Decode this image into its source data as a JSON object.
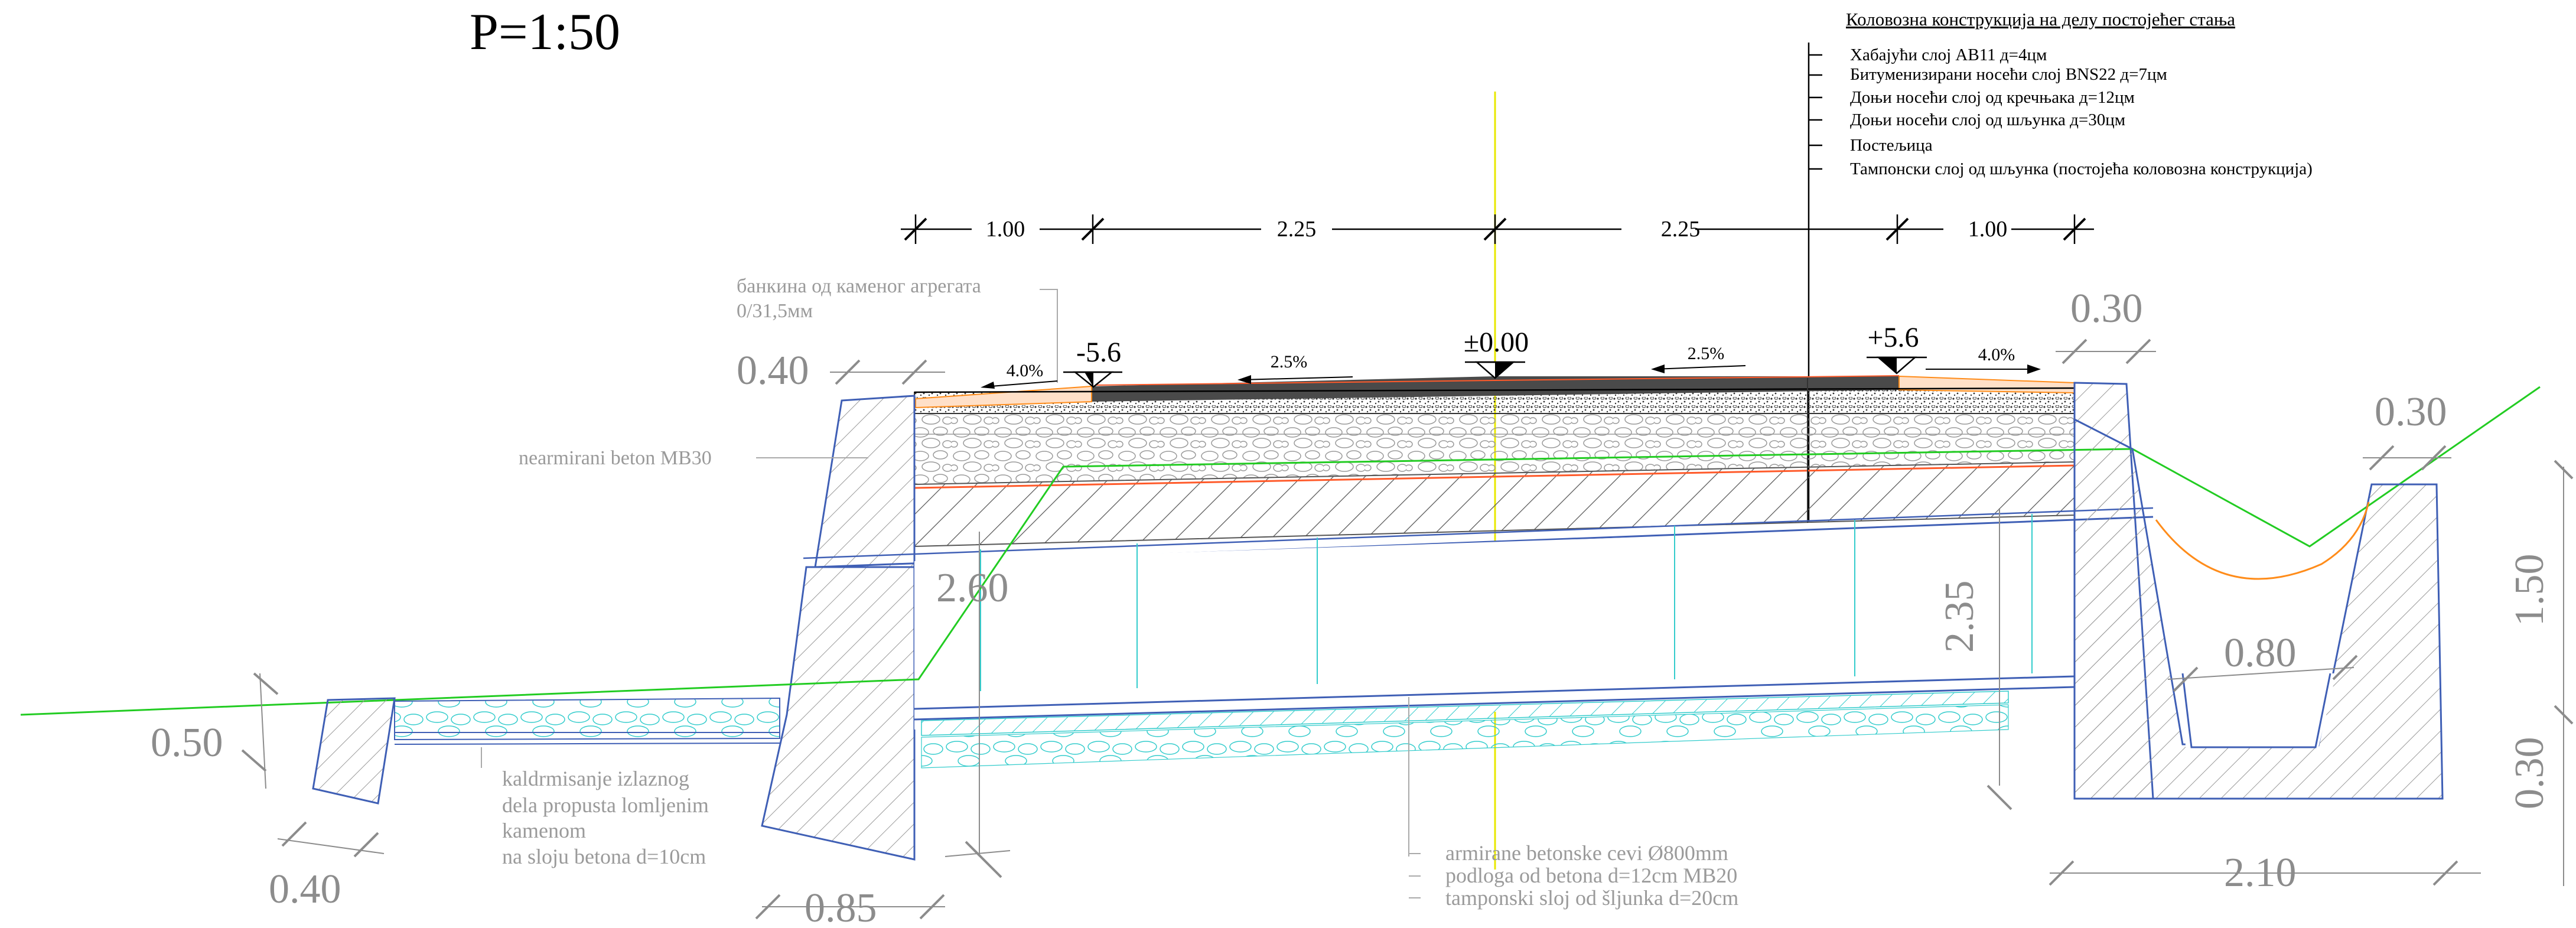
{
  "scale_title": "P=1:50",
  "legend": {
    "heading": "Коловозна конструкција на делу постојећег стања",
    "items": [
      "Хабајући слој АВ11   д=4цм",
      "Битуменизирани носећи слој BNS22  д=7цм",
      "Доњи носећи слој од кречњака   д=12цм",
      "Доњи носећи слој од шљунка   д=30цм",
      "Постељица",
      "Тампонски слој од шљунка (постојећа коловозна конструкција)"
    ]
  },
  "top_dimensions": [
    "1.00",
    "2.25",
    "2.25",
    "1.00"
  ],
  "levels": {
    "left": "-5.6",
    "center": "±0.00",
    "right": "+5.6"
  },
  "slopes": {
    "left_shoulder": "4.0%",
    "left_lane": "2.5%",
    "right_lane": "2.5%",
    "right_shoulder": "4.0%"
  },
  "annotations": {
    "shoulder_line1": "банкина од каменог агрегата",
    "shoulder_line2": "0/31,5мм",
    "concrete": "nearmirani beton MB30",
    "paving_line1": "kaldrmisanje izlaznog",
    "paving_line2": "dela propusta lomljenim",
    "paving_line3": "kamenom",
    "paving_line4": "na sloju betona d=10cm",
    "pipe_line1": "armirane betonske cevi Ø800mm",
    "pipe_line2": "podloga od betona d=12cm MB20",
    "pipe_line3": "tamponski sloj od šljunka d=20cm"
  },
  "dimensions": {
    "left_wall_top": "0.40",
    "right_wall_top": "0.30",
    "ditch_wall_top": "0.30",
    "left_height": "2.60",
    "right_height": "2.35",
    "ditch_bottom": "0.80",
    "ditch_height": "1.50",
    "ditch_base": "0.30",
    "ditch_width": "2.10",
    "apron_thickness": "0.50",
    "apron_width": "0.40",
    "left_base": "0.85"
  },
  "colors": {
    "structure": "#3f5fb5",
    "ground": "#22cc22",
    "axis": "#e8e800",
    "pipe": "#33cccc",
    "subgrade": "#ff5a2a",
    "ditch_curve": "#ff8c1a",
    "asphalt": "#4a4a4a",
    "hatch": "#8a8a8a",
    "dim": "#8c8c8c"
  }
}
